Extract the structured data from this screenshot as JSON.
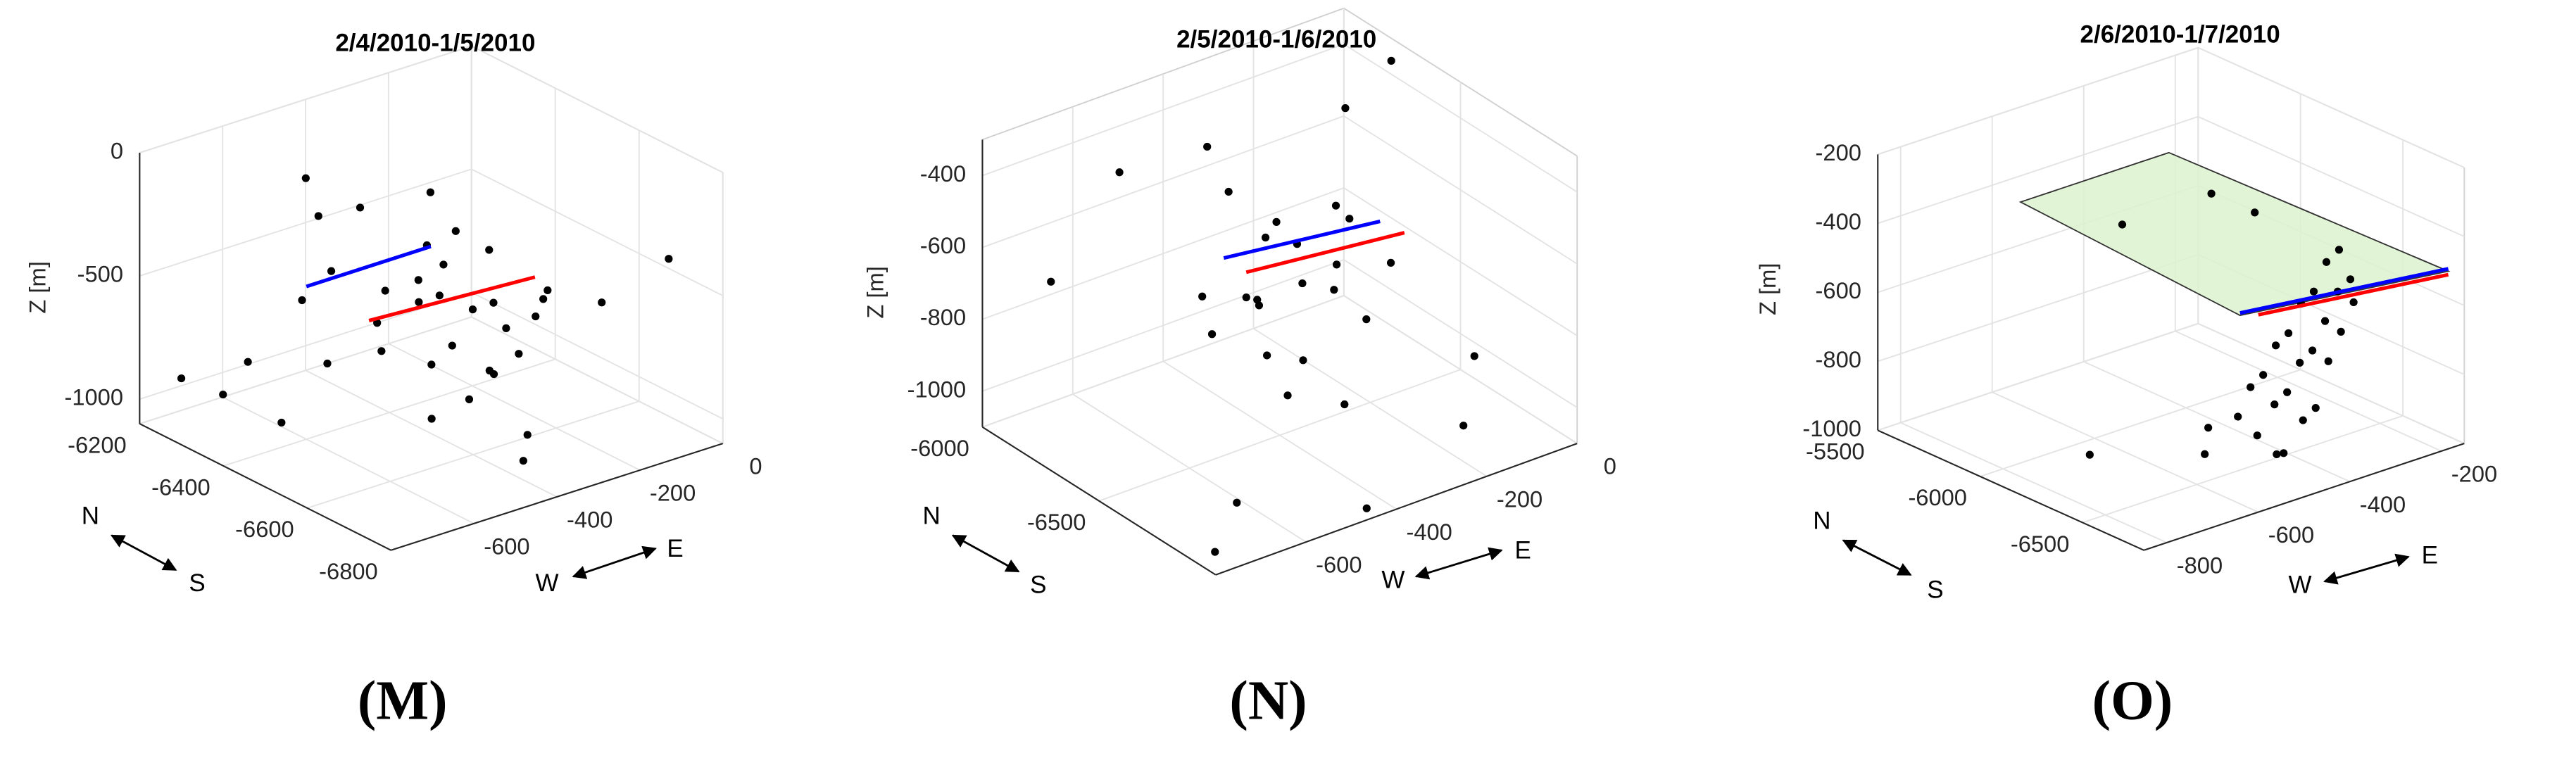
{
  "chart_data": [
    {
      "type": "scatter3d",
      "title": "2/4/2010-1/5/2010",
      "label": "(M)",
      "zlabel": "Z [m]",
      "y_direction": [
        "N",
        "S"
      ],
      "x_direction": [
        "W",
        "E"
      ],
      "xlim": [
        -800,
        0
      ],
      "ylim": [
        -6800,
        -6200
      ],
      "zlim": [
        -1100,
        0
      ],
      "xticks": [
        -600,
        -400,
        -200,
        0
      ],
      "yticks": [
        -6200,
        -6400,
        -6600,
        -6800
      ],
      "zticks": [
        -1000,
        -500,
        0
      ],
      "grid": true,
      "points": {
        "color": "#000000",
        "x": [
          -520,
          -480,
          -450,
          -410,
          -380,
          -350,
          -320,
          -300,
          -270,
          -240,
          -560,
          -600,
          -640,
          -500,
          -460,
          -430,
          -400,
          -360,
          -330,
          -290,
          -250,
          -210,
          -170,
          -130,
          -90,
          -540,
          -470,
          -420,
          -370,
          -310,
          -700,
          -750,
          -660,
          -80,
          -380,
          -300,
          -450,
          -200
        ],
        "y": [
          -6500,
          -6450,
          -6550,
          -6400,
          -6500,
          -6600,
          -6450,
          -6500,
          -6550,
          -6400,
          -6350,
          -6450,
          -6300,
          -6600,
          -6650,
          -6500,
          -6550,
          -6450,
          -6400,
          -6600,
          -6500,
          -6450,
          -6550,
          -6500,
          -6600,
          -6400,
          -6300,
          -6350,
          -6700,
          -6550,
          -6300,
          -6250,
          -6400,
          -6750,
          -6700,
          -6650,
          -6250,
          -6300
        ],
        "z": [
          -700,
          -650,
          -750,
          -600,
          -550,
          -800,
          -500,
          -650,
          -700,
          -450,
          -600,
          -750,
          -850,
          -900,
          -800,
          -550,
          -700,
          -400,
          -600,
          -750,
          -650,
          -500,
          -600,
          -700,
          -650,
          -450,
          -350,
          -300,
          -950,
          -850,
          -950,
          -900,
          -1000,
          -350,
          -1050,
          -550,
          -250,
          -400
        ]
      },
      "lines": [
        {
          "color": "#0000ff",
          "x": [
            -600,
            -300
          ],
          "y": [
            -6400,
            -6400
          ],
          "z": [
            -480,
            -480
          ]
        },
        {
          "color": "#ff0000",
          "x": [
            -550,
            -150
          ],
          "y": [
            -6500,
            -6500
          ],
          "z": [
            -560,
            -600
          ]
        }
      ]
    },
    {
      "type": "scatter3d",
      "title": "2/5/2010-1/6/2010",
      "label": "(N)",
      "zlabel": "Z [m]",
      "y_direction": [
        "N",
        "S"
      ],
      "x_direction": [
        "W",
        "E"
      ],
      "xlim": [
        -800,
        0
      ],
      "ylim": [
        -7000,
        -6000
      ],
      "zlim": [
        -1100,
        -300
      ],
      "xticks": [
        -600,
        -400,
        -200,
        0
      ],
      "yticks": [
        -6000,
        -6500
      ],
      "zticks": [
        -1000,
        -800,
        -600,
        -400
      ],
      "grid": true,
      "points": {
        "color": "#000000",
        "x": [
          -450,
          -420,
          -500,
          -380,
          -350,
          -300,
          -250,
          -480,
          -520,
          -400,
          -330,
          -280,
          -220,
          -180,
          -550,
          -460,
          -410,
          -360,
          -310,
          -260,
          -600,
          -700,
          -750,
          -100,
          -50,
          -650,
          -200,
          -150,
          -380,
          -440
        ],
        "y": [
          -6500,
          -6450,
          -6550,
          -6400,
          -6500,
          -6550,
          -6450,
          -6600,
          -6400,
          -6600,
          -6350,
          -6500,
          -6450,
          -6550,
          -6500,
          -6650,
          -6300,
          -6700,
          -6400,
          -6600,
          -6200,
          -6100,
          -6900,
          -6200,
          -6300,
          -6800,
          -6900,
          -6850,
          -6150,
          -6950
        ],
        "z": [
          -700,
          -750,
          -650,
          -600,
          -700,
          -650,
          -550,
          -800,
          -700,
          -850,
          -600,
          -750,
          -600,
          -700,
          -750,
          -900,
          -500,
          -950,
          -650,
          -800,
          -400,
          -700,
          -1100,
          -450,
          -300,
          -1050,
          -1000,
          -850,
          -450,
          -1100
        ]
      },
      "lines": [
        {
          "color": "#0000ff",
          "x": [
            -524,
            -178
          ],
          "y": [
            -6500,
            -6500
          ],
          "z": [
            -550,
            -606
          ]
        },
        {
          "color": "#ff0000",
          "x": [
            -500,
            -150
          ],
          "y": [
            -6550,
            -6550
          ],
          "z": [
            -580,
            -630
          ]
        }
      ]
    },
    {
      "type": "scatter3d",
      "title": "2/6/2010-1/7/2010",
      "label": "(O)",
      "zlabel": "Z [m]",
      "y_direction": [
        "N",
        "S"
      ],
      "x_direction": [
        "W",
        "E"
      ],
      "xlim": [
        -850,
        -150
      ],
      "ylim": [
        -6800,
        -5500
      ],
      "zlim": [
        -1000,
        -200
      ],
      "xticks": [
        -800,
        -600,
        -400,
        -200
      ],
      "yticks": [
        -6500,
        -6000,
        -5500
      ],
      "zticks": [
        -1000,
        -800,
        -600,
        -400,
        -200
      ],
      "grid": true,
      "points": {
        "color": "#000000",
        "x": [
          -600,
          -550,
          -500,
          -450,
          -400,
          -350,
          -300,
          -250,
          -200,
          -580,
          -520,
          -470,
          -420,
          -370,
          -320,
          -270,
          -220,
          -560,
          -480,
          -430,
          -380,
          -330,
          -280,
          -620,
          -650,
          -700,
          -500,
          -450,
          -300,
          -250
        ],
        "y": [
          -6700,
          -6650,
          -6600,
          -6550,
          -6500,
          -6450,
          -6400,
          -6350,
          -6300,
          -6750,
          -6700,
          -6650,
          -6600,
          -6550,
          -6500,
          -6450,
          -6400,
          -6800,
          -6750,
          -6700,
          -6650,
          -6600,
          -6550,
          -6600,
          -6650,
          -6200,
          -6700,
          -5800,
          -5900,
          -6000
        ],
        "z": [
          -750,
          -700,
          -700,
          -650,
          -650,
          -600,
          -600,
          -550,
          -550,
          -800,
          -750,
          -750,
          -700,
          -700,
          -650,
          -600,
          -600,
          -850,
          -800,
          -800,
          -700,
          -650,
          -600,
          -800,
          -850,
          -950,
          -900,
          -500,
          -450,
          -500
        ]
      },
      "plane": {
        "color": "#ddf2cf",
        "x": [
          -640,
          -185,
          -214,
          -538
        ],
        "y": [
          -6800,
          -6800,
          -5500,
          -5500
        ],
        "z": [
          -412,
          -485,
          -476,
          -476
        ]
      },
      "lines": [
        {
          "color": "#0000ff",
          "x": [
            -640,
            -185
          ],
          "y": [
            -6800,
            -6800
          ],
          "z": [
            -405,
            -478
          ]
        },
        {
          "color": "#ff0000",
          "x": [
            -600,
            -185
          ],
          "y": [
            -6800,
            -6800
          ],
          "z": [
            -428,
            -495
          ]
        }
      ]
    }
  ]
}
